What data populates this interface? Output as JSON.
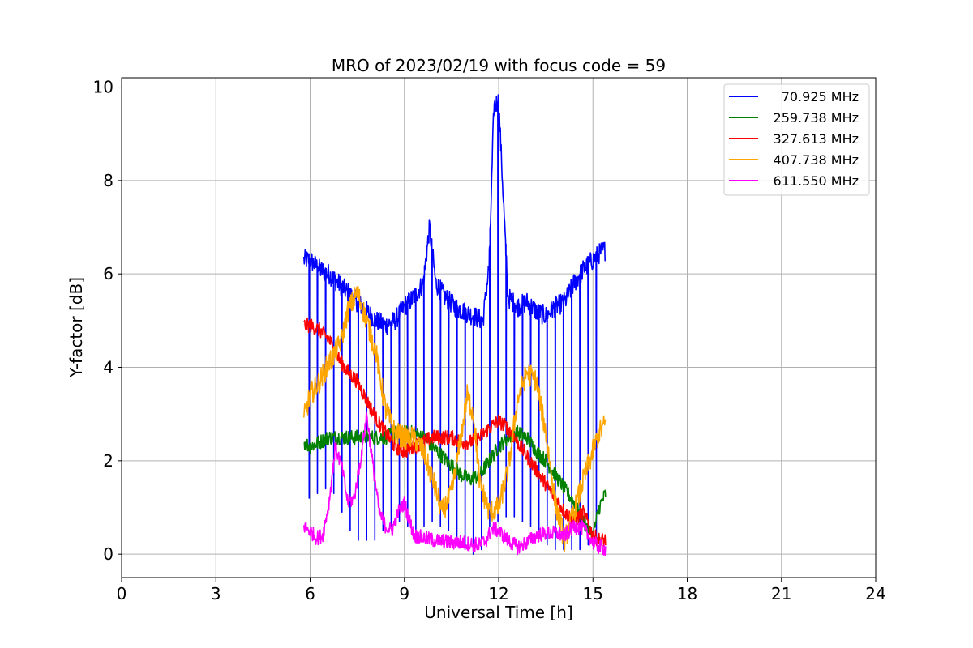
{
  "chart_data": {
    "type": "line",
    "title": "MRO of 2023/02/19 with focus code = 59",
    "xlabel": "Universal Time [h]",
    "ylabel": "Y-factor [dB]",
    "xlim": [
      0,
      24
    ],
    "ylim": [
      -0.5,
      10.2
    ],
    "x_ticks": [
      0,
      3,
      6,
      9,
      12,
      15,
      18,
      21,
      24
    ],
    "y_ticks": [
      0,
      2,
      4,
      6,
      8,
      10
    ],
    "grid": true,
    "legend_position": "top-right",
    "series": [
      {
        "name": "70.925 MHz",
        "color": "#0000ff",
        "x": [
          5.8,
          6.0,
          6.3,
          6.6,
          6.9,
          7.2,
          7.5,
          7.8,
          8.1,
          8.4,
          8.7,
          9.0,
          9.3,
          9.6,
          9.8,
          10.0,
          10.3,
          10.6,
          10.9,
          11.2,
          11.5,
          11.7,
          11.85,
          12.0,
          12.3,
          12.6,
          12.9,
          13.2,
          13.5,
          13.8,
          14.1,
          14.4,
          14.7,
          15.0,
          15.3,
          15.4
        ],
        "y": [
          6.3,
          6.3,
          6.1,
          6.0,
          5.8,
          5.6,
          5.4,
          5.2,
          5.0,
          4.9,
          5.0,
          5.3,
          5.5,
          5.8,
          7.0,
          5.8,
          5.5,
          5.3,
          5.2,
          5.1,
          5.0,
          6.2,
          9.6,
          9.7,
          5.5,
          5.3,
          5.4,
          5.2,
          5.1,
          5.3,
          5.4,
          5.8,
          6.1,
          6.3,
          6.5,
          6.5
        ],
        "dip_min": [
          1.2,
          1.3,
          1.4,
          1.3,
          0.9,
          0.5,
          0.3,
          0.3,
          0.3,
          0.5,
          0.6,
          0.7,
          0.6,
          0.5,
          0.6,
          0.7,
          0.6,
          0.5,
          0.3,
          0.1,
          0.0,
          0.1,
          0.6,
          0.7,
          0.8,
          0.8,
          0.7,
          0.6,
          0.4,
          0.2,
          0.1,
          0.1,
          0.1,
          0.1,
          0.2,
          0.3
        ]
      },
      {
        "name": "259.738 MHz",
        "color": "#008000",
        "x": [
          5.8,
          6.0,
          6.3,
          6.6,
          6.9,
          7.2,
          7.5,
          7.8,
          8.1,
          8.4,
          8.7,
          9.0,
          9.3,
          9.6,
          9.9,
          10.2,
          10.5,
          10.8,
          11.1,
          11.4,
          11.7,
          12.0,
          12.3,
          12.6,
          12.9,
          13.2,
          13.5,
          13.8,
          14.1,
          14.4,
          14.7,
          15.0,
          15.2,
          15.4
        ],
        "y": [
          2.4,
          2.3,
          2.4,
          2.5,
          2.5,
          2.5,
          2.5,
          2.5,
          2.5,
          2.5,
          2.6,
          2.6,
          2.6,
          2.5,
          2.3,
          2.1,
          1.9,
          1.7,
          1.6,
          1.7,
          2.0,
          2.3,
          2.5,
          2.6,
          2.5,
          2.2,
          2.0,
          1.7,
          1.4,
          1.1,
          0.7,
          0.4,
          1.0,
          1.3
        ]
      },
      {
        "name": "327.613 MHz",
        "color": "#ff0000",
        "x": [
          5.8,
          6.0,
          6.3,
          6.6,
          6.9,
          7.2,
          7.5,
          7.8,
          8.1,
          8.4,
          8.7,
          9.0,
          9.3,
          9.6,
          9.9,
          10.2,
          10.5,
          10.8,
          11.1,
          11.4,
          11.7,
          12.0,
          12.3,
          12.6,
          12.9,
          13.2,
          13.5,
          13.8,
          14.1,
          14.4,
          14.7,
          15.0,
          15.2,
          15.4
        ],
        "y": [
          4.9,
          4.9,
          4.8,
          4.6,
          4.2,
          3.9,
          3.7,
          3.3,
          2.9,
          2.6,
          2.3,
          2.2,
          2.3,
          2.4,
          2.5,
          2.5,
          2.5,
          2.4,
          2.4,
          2.5,
          2.7,
          2.85,
          2.7,
          2.4,
          2.1,
          1.8,
          1.5,
          1.2,
          0.9,
          0.7,
          0.9,
          0.4,
          0.3,
          0.3
        ]
      },
      {
        "name": "407.738 MHz",
        "color": "#ffa500",
        "x": [
          5.8,
          6.0,
          6.3,
          6.6,
          6.8,
          7.0,
          7.2,
          7.5,
          7.8,
          8.1,
          8.4,
          8.7,
          9.0,
          9.3,
          9.6,
          9.9,
          10.2,
          10.5,
          10.8,
          11.0,
          11.2,
          11.4,
          11.7,
          12.0,
          12.3,
          12.6,
          12.9,
          13.2,
          13.5,
          13.8,
          14.1,
          14.4,
          14.7,
          15.0,
          15.2,
          15.4
        ],
        "y": [
          2.9,
          3.4,
          3.7,
          4.1,
          4.3,
          4.6,
          5.2,
          5.6,
          5.0,
          4.3,
          3.1,
          2.6,
          2.5,
          2.5,
          2.2,
          1.6,
          0.9,
          1.3,
          2.5,
          3.4,
          3.0,
          1.5,
          0.9,
          1.0,
          1.8,
          3.3,
          3.9,
          3.7,
          2.6,
          1.1,
          0.3,
          0.9,
          1.6,
          2.2,
          2.6,
          2.8
        ]
      },
      {
        "name": "611.550 MHz",
        "color": "#ff00ff",
        "x": [
          5.8,
          6.0,
          6.2,
          6.4,
          6.6,
          6.8,
          7.0,
          7.2,
          7.4,
          7.6,
          7.8,
          8.0,
          8.2,
          8.4,
          8.6,
          8.8,
          9.0,
          9.3,
          9.6,
          9.9,
          10.2,
          10.5,
          10.8,
          11.1,
          11.4,
          11.6,
          11.8,
          12.0,
          12.3,
          12.6,
          12.9,
          13.2,
          13.5,
          13.8,
          14.1,
          14.4,
          14.7,
          15.0,
          15.2,
          15.4
        ],
        "y": [
          0.6,
          0.5,
          0.35,
          0.4,
          1.1,
          2.3,
          1.9,
          1.1,
          1.2,
          2.0,
          3.0,
          1.9,
          0.9,
          0.6,
          0.5,
          0.9,
          1.1,
          0.4,
          0.35,
          0.3,
          0.28,
          0.25,
          0.25,
          0.22,
          0.2,
          0.3,
          0.55,
          0.5,
          0.3,
          0.15,
          0.25,
          0.4,
          0.45,
          0.45,
          0.4,
          0.6,
          0.55,
          0.25,
          0.15,
          0.12
        ]
      }
    ]
  }
}
